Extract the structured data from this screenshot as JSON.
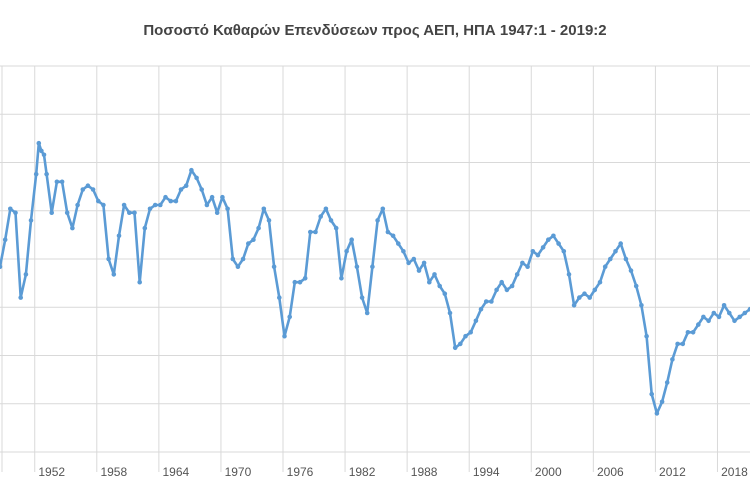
{
  "chart_data": {
    "type": "line",
    "title": "Ποσοστό Καθαρών Επενδύσεων προς ΑΕΠ, ΗΠΑ 1947:1 - 2019:2",
    "xlabel": "",
    "ylabel": "",
    "x_tick_labels": [
      "1952",
      "1958",
      "1964",
      "1970",
      "1976",
      "1982",
      "1988",
      "1994",
      "2000",
      "2006",
      "2012",
      "2018"
    ],
    "x_tick_years": [
      1952,
      1958,
      1964,
      1970,
      1976,
      1982,
      1988,
      1994,
      2000,
      2006,
      2012,
      2018
    ],
    "xlim": [
      1947,
      2019.5
    ],
    "ylim": [
      0,
      100
    ],
    "grid": true,
    "legend": "none",
    "colors": {
      "line": "#5b9bd5",
      "grid": "#d9d9d9"
    },
    "series": [
      {
        "name": "",
        "x": [
          1947,
          1947.5,
          1948,
          1948.5,
          1949,
          1949.5,
          1950,
          1950.5,
          1950.75,
          1951,
          1951.25,
          1951.5,
          1952,
          1952.5,
          1953,
          1953.5,
          1954,
          1954.5,
          1955,
          1955.5,
          1956,
          1956.5,
          1957,
          1957.5,
          1958,
          1958.5,
          1959,
          1959.5,
          1960,
          1960.5,
          1961,
          1961.5,
          1962,
          1962.5,
          1963,
          1963.5,
          1964,
          1964.5,
          1965,
          1965.5,
          1966,
          1966.5,
          1967,
          1967.5,
          1968,
          1968.5,
          1969,
          1969.5,
          1970,
          1970.5,
          1971,
          1971.5,
          1972,
          1972.5,
          1973,
          1973.5,
          1974,
          1974.5,
          1975,
          1975.5,
          1976,
          1976.5,
          1977,
          1977.5,
          1978,
          1978.5,
          1979,
          1979.5,
          1980,
          1980.5,
          1981,
          1981.5,
          1982,
          1982.5,
          1983,
          1983.5,
          1984,
          1984.5,
          1985,
          1985.5,
          1986,
          1986.5,
          1987,
          1987.5,
          1988,
          1988.5,
          1989,
          1989.5,
          1990,
          1990.5,
          1991,
          1991.5,
          1992,
          1992.5,
          1993,
          1993.5,
          1994,
          1994.5,
          1995,
          1995.5,
          1996,
          1996.5,
          1997,
          1997.5,
          1998,
          1998.5,
          1999,
          1999.5,
          2000,
          2000.5,
          2001,
          2001.5,
          2002,
          2002.5,
          2003,
          2003.5,
          2004,
          2004.5,
          2005,
          2005.5,
          2006,
          2006.5,
          2007,
          2007.5,
          2008,
          2008.5,
          2009,
          2009.5,
          2010,
          2010.5,
          2011,
          2011.5,
          2012,
          2012.5,
          2013,
          2013.5,
          2014,
          2014.5,
          2015,
          2015.5,
          2016,
          2016.5,
          2017,
          2017.5,
          2018,
          2018.5,
          2019,
          2019.5
        ],
        "values": [
          48,
          55,
          63,
          62,
          40,
          46,
          60,
          72,
          80,
          78,
          77,
          72,
          62,
          70,
          70,
          62,
          58,
          64,
          68,
          69,
          68,
          65,
          64,
          50,
          46,
          56,
          64,
          62,
          62,
          44,
          58,
          63,
          64,
          64,
          66,
          65,
          65,
          68,
          69,
          73,
          71,
          68,
          64,
          66,
          62,
          66,
          63,
          50,
          48,
          50,
          54,
          55,
          58,
          63,
          60,
          48,
          40,
          30,
          35,
          44,
          44,
          45,
          57,
          57,
          61,
          63,
          60,
          58,
          45,
          52,
          55,
          48,
          40,
          36,
          48,
          60,
          63,
          57,
          56,
          54,
          52,
          49,
          50,
          47,
          49,
          44,
          46,
          43,
          41,
          36,
          27,
          28,
          30,
          31,
          34,
          37,
          39,
          39,
          42,
          44,
          42,
          43,
          46,
          49,
          48,
          52,
          51,
          53,
          55,
          56,
          54,
          52,
          46,
          38,
          40,
          41,
          40,
          42,
          44,
          48,
          50,
          52,
          54,
          50,
          47,
          43,
          38,
          30,
          15,
          10,
          13,
          18,
          24,
          28,
          28,
          31,
          31,
          33,
          35,
          34,
          36,
          35,
          38,
          36,
          34,
          35,
          36,
          37
        ]
      }
    ]
  }
}
